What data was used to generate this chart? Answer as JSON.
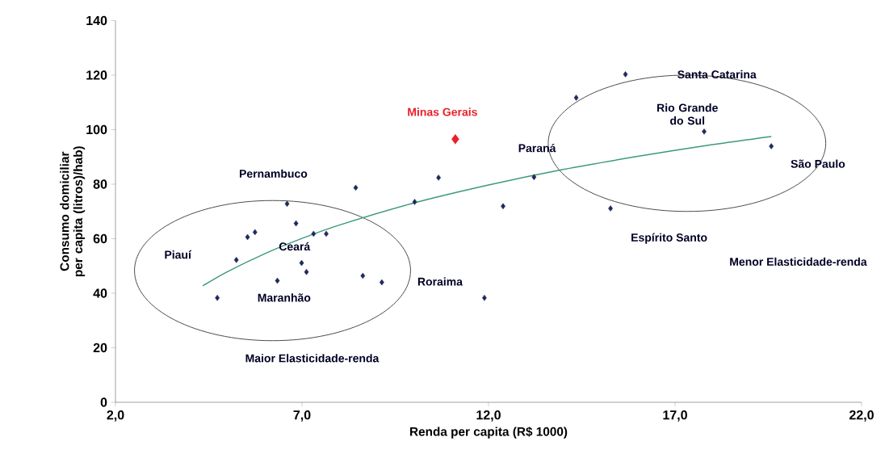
{
  "chart_data": {
    "type": "scatter",
    "xlabel": "Renda per capita (R$ 1000)",
    "ylabel": "Consumo domiciliar per capita (litros)/hab)",
    "xlim": [
      2,
      22
    ],
    "ylim": [
      0,
      140
    ],
    "xticks": [
      {
        "value": 2,
        "label": "2,0"
      },
      {
        "value": 7,
        "label": "7,0"
      },
      {
        "value": 12,
        "label": "12,0"
      },
      {
        "value": 17,
        "label": "17,0"
      },
      {
        "value": 22,
        "label": "22,0"
      }
    ],
    "yticks": [
      0,
      20,
      40,
      60,
      80,
      100,
      120,
      140
    ],
    "grid": false,
    "series": [
      {
        "marker": "diamond",
        "color": "#1f2a5c",
        "x": [
          6.6,
          6.84,
          5.54,
          5.74,
          5.24,
          7.31,
          7.65,
          6.99,
          7.12,
          6.34,
          4.73,
          8.63,
          9.14,
          11.89,
          8.44,
          10.66,
          10.02,
          13.22,
          12.39,
          15.27,
          14.35,
          15.67,
          17.78,
          19.58
        ],
        "values": [
          72.8,
          65.6,
          60.6,
          62.4,
          52.2,
          61.8,
          61.8,
          51.1,
          47.8,
          44.6,
          38.3,
          46.4,
          44.0,
          38.3,
          78.7,
          82.4,
          73.5,
          82.6,
          71.9,
          71.1,
          111.7,
          120.3,
          99.3,
          93.9
        ]
      },
      {
        "name": "Minas Gerais",
        "marker": "diamond",
        "color": "#e8202a",
        "x": [
          11.11
        ],
        "values": [
          96.5
        ]
      },
      {
        "type": "line",
        "marker": "none",
        "color": "#3d9a7a",
        "x": [
          4.34,
          5,
          6,
          7,
          8,
          10,
          12,
          14,
          16,
          18,
          19.58
        ],
        "values": [
          42.7,
          47.9,
          54.5,
          60.1,
          65.0,
          73.1,
          79.7,
          85.4,
          90.2,
          94.5,
          97.5
        ]
      }
    ],
    "annotations": [
      "Pernambuco",
      "Piauí",
      "Ceará",
      "Maranhão",
      "Roraima",
      "Maior Elasticidade-renda",
      "Santa Catarina",
      "Rio Grande do Sul",
      "Paraná",
      "São Paulo",
      "Espírito Santo",
      "Menor Elasticidade-renda"
    ]
  }
}
